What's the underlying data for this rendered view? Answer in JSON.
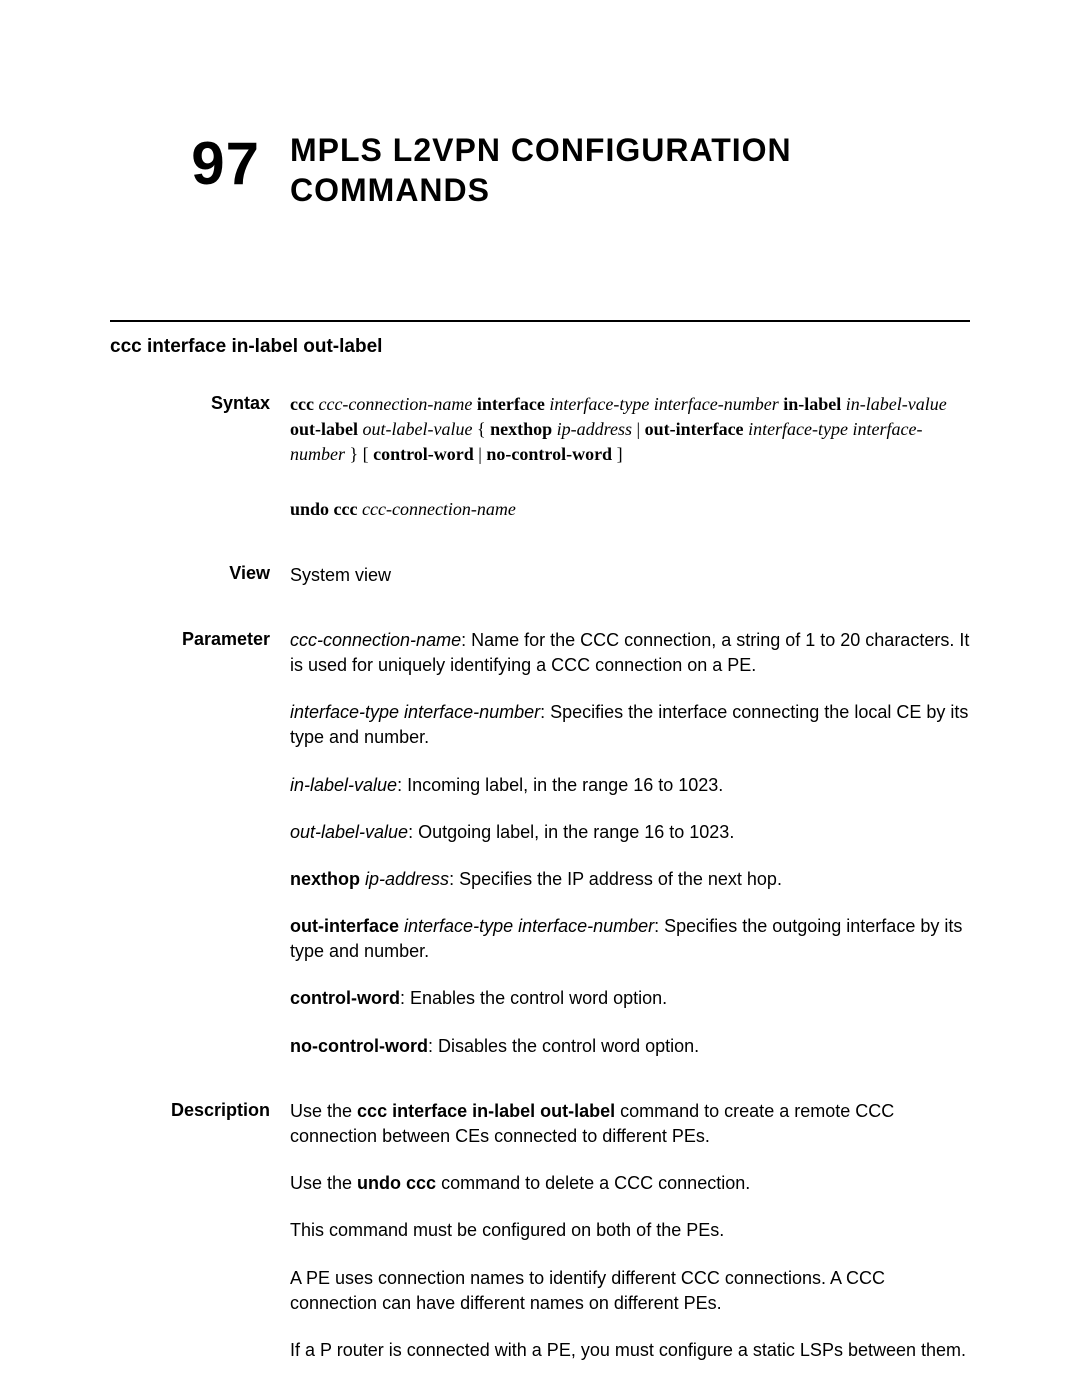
{
  "chapter": {
    "number": "97",
    "title_line1": "MPLS L2VPN C",
    "title_line1_sc": "ONFIGURATION",
    "title_line2": "C",
    "title_line2_sc": "OMMANDS"
  },
  "section_heading": "ccc interface in-label out-label",
  "syntax": {
    "label": "Syntax",
    "ccc": "ccc",
    "ccc_name": "ccc-connection-name",
    "interface_kw": "interface",
    "itype_inum": "interface-type interface-number",
    "inlabel_kw": "in-label",
    "inlabel_val": "in-label-value",
    "outlabel_kw": "out-label",
    "outlabel_val": "out-label-value",
    "brace_open": "{",
    "nexthop_kw": "nexthop",
    "ip_addr": "ip-address",
    "pipe1": "|",
    "outif_kw": "out-interface",
    "itype_inum2": "interface-type interface-number",
    "brace_close": "}",
    "bracket_open": "[",
    "cw": "control-word",
    "pipe2": "|",
    "ncw": "no-control-word",
    "bracket_close": "]",
    "undo_ccc": "undo ccc",
    "undo_name": "ccc-connection-name"
  },
  "view": {
    "label": "View",
    "text": "System view"
  },
  "parameter": {
    "label": "Parameter",
    "p1_ital": "ccc-connection-name",
    "p1_rest": ": Name for the CCC connection, a string of 1 to 20 characters. It is used for uniquely identifying a CCC connection on a PE.",
    "p2_ital": "interface-type interface-number",
    "p2_rest": ": Specifies the interface connecting the local CE by its type and number.",
    "p3_ital": "in-label-value",
    "p3_rest": ": Incoming label, in the range 16 to 1023.",
    "p4_ital": "out-label-value",
    "p4_rest": ": Outgoing label, in the range 16 to 1023.",
    "p5_bold": "nexthop",
    "p5_ital": "ip-address",
    "p5_rest": ": Specifies the IP address of the next hop.",
    "p6_bold": "out-interface",
    "p6_ital": "interface-type interface-number",
    "p6_rest": ": Specifies the outgoing interface by its type and number.",
    "p7_bold": "control-word",
    "p7_rest": ": Enables the control word option.",
    "p8_bold": "no-control-word",
    "p8_rest": ": Disables the control word option."
  },
  "description": {
    "label": "Description",
    "d1_pre": "Use the ",
    "d1_bold": "ccc interface in-label out-label",
    "d1_post": " command to create a remote CCC connection between CEs connected to different PEs.",
    "d2_pre": "Use the ",
    "d2_bold": "undo ccc",
    "d2_post": " command to delete a CCC connection.",
    "d3": "This command must be configured on both of the PEs.",
    "d4": "A PE uses connection names to identify different CCC connections. A CCC connection can have different names on different PEs.",
    "d5": "If a P router is connected with a PE, you must configure a static LSPs between them."
  }
}
